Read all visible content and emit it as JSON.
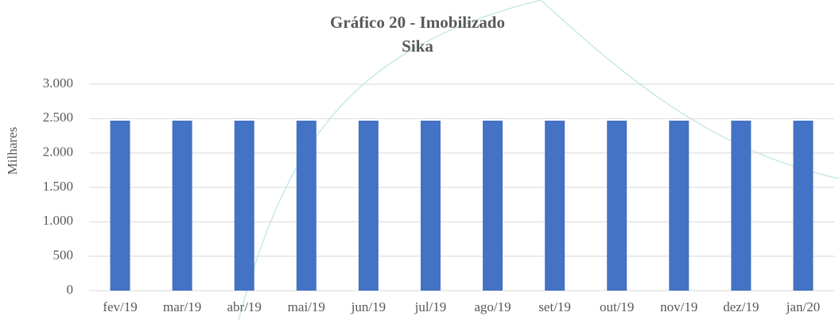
{
  "chart_data": {
    "type": "bar",
    "title": "Gráfico 20 - Imobilizado",
    "subtitle": "Sika",
    "y_label": "Milhares",
    "categories": [
      "fev/19",
      "mar/19",
      "abr/19",
      "mai/19",
      "jun/19",
      "jul/19",
      "ago/19",
      "set/19",
      "out/19",
      "nov/19",
      "dez/19",
      "jan/20"
    ],
    "values": [
      2470,
      2470,
      2470,
      2470,
      2470,
      2470,
      2470,
      2470,
      2470,
      2470,
      2470,
      2470
    ],
    "color": "#4472c4",
    "ylim": [
      0,
      3000
    ],
    "yticks": [
      0,
      500,
      {
        "value": 1000,
        "label": "1.000"
      },
      {
        "value": 1500,
        "label": "1.500"
      },
      {
        "value": 2000,
        "label": "2.000"
      },
      {
        "value": 2500,
        "label": "2.500"
      },
      {
        "value": 3000,
        "label": "3.000"
      }
    ],
    "grid": true
  }
}
